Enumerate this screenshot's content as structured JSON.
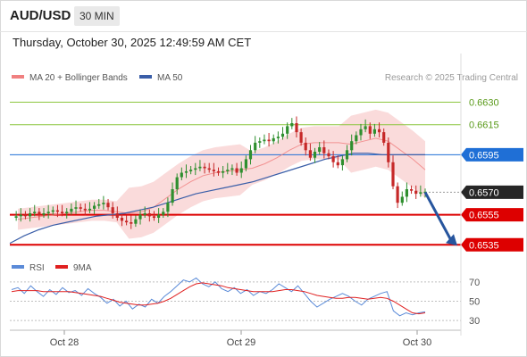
{
  "header": {
    "symbol": "AUD/USD",
    "timeframe": "30 MIN",
    "datetime": "Thursday, October 30, 2025 12:49:59 AM CET"
  },
  "colors": {
    "candle_up": "#2f8f2f",
    "candle_down": "#c62828",
    "bollinger_band": "#f8c8c8",
    "ma20": "#f08080",
    "ma50": "#3a5ea8",
    "resistance_green": "#8cc63f",
    "pivot_blue": "#1f6fd6",
    "support_red": "#dd0000",
    "rsi": "#5b8bd8",
    "rsi_ma": "#e02020",
    "forecast_arrow": "#27559e"
  },
  "chart_data": [
    {
      "type": "candlestick",
      "legend": [
        {
          "name": "MA 20 + Bollinger Bands",
          "color": "#f08080"
        },
        {
          "name": "MA 50",
          "color": "#3a5ea8"
        }
      ],
      "credit": "Research © 2025 Trading Central",
      "x_ticks": [
        "Oct 28",
        "Oct 29",
        "Oct 30"
      ],
      "ylim": [
        0.6531,
        0.6641
      ],
      "levels": [
        {
          "label": "0.6630",
          "value": 0.663,
          "kind": "resistance",
          "color": "#8cc63f"
        },
        {
          "label": "0.6615",
          "value": 0.6615,
          "kind": "resistance",
          "color": "#8cc63f"
        },
        {
          "label": "0.6595",
          "value": 0.6595,
          "kind": "pivot",
          "color": "#1f6fd6"
        },
        {
          "label": "0.6570",
          "value": 0.657,
          "kind": "last",
          "color": "#262626"
        },
        {
          "label": "0.6555",
          "value": 0.6555,
          "kind": "support",
          "color": "#dd0000"
        },
        {
          "label": "0.6535",
          "value": 0.6535,
          "kind": "support",
          "color": "#dd0000"
        }
      ],
      "forecast": {
        "from": 0.657,
        "to": 0.6535
      },
      "price_path": [
        0.6553,
        0.6554,
        0.6555,
        0.6554,
        0.6556,
        0.6557,
        0.6555,
        0.6556,
        0.6557,
        0.6558,
        0.6557,
        0.6556,
        0.6557,
        0.6559,
        0.656,
        0.6559,
        0.6558,
        0.6559,
        0.6561,
        0.6562,
        0.6563,
        0.656,
        0.6556,
        0.6553,
        0.6551,
        0.655,
        0.6549,
        0.6552,
        0.6555,
        0.6556,
        0.6554,
        0.6553,
        0.6555,
        0.6557,
        0.6563,
        0.6572,
        0.658,
        0.6583,
        0.6584,
        0.6585,
        0.6586,
        0.6587,
        0.6586,
        0.6585,
        0.6584,
        0.6583,
        0.6584,
        0.6585,
        0.6586,
        0.6583,
        0.6586,
        0.6592,
        0.6598,
        0.6603,
        0.6604,
        0.6605,
        0.6604,
        0.6606,
        0.6607,
        0.6609,
        0.6614,
        0.6616,
        0.661,
        0.6603,
        0.6598,
        0.6593,
        0.6597,
        0.66,
        0.6596,
        0.6594,
        0.659,
        0.6588,
        0.6592,
        0.6598,
        0.6604,
        0.6608,
        0.6612,
        0.6614,
        0.6609,
        0.6612,
        0.661,
        0.6603,
        0.659,
        0.6574,
        0.6563,
        0.6567,
        0.6572,
        0.6571,
        0.6569,
        0.657,
        0.657
      ],
      "ma20": [
        0.6552,
        0.6553,
        0.6554,
        0.6555,
        0.6556,
        0.6557,
        0.6558,
        0.6558,
        0.6557,
        0.6556,
        0.6557,
        0.656,
        0.6566,
        0.6572,
        0.6577,
        0.6581,
        0.6583,
        0.6584,
        0.6585,
        0.6586,
        0.6589,
        0.6593,
        0.6598,
        0.6602,
        0.6603,
        0.6603,
        0.6603,
        0.6602,
        0.6604,
        0.6606,
        0.6604,
        0.6598,
        0.6592,
        0.6585
      ],
      "ma50": [
        0.6536,
        0.6541,
        0.6545,
        0.6548,
        0.655,
        0.6552,
        0.6554,
        0.6555,
        0.6556,
        0.6558,
        0.656,
        0.6563,
        0.6566,
        0.6569,
        0.6571,
        0.6573,
        0.6575,
        0.6577,
        0.658,
        0.6583,
        0.6586,
        0.6589,
        0.6592,
        0.6594,
        0.6596,
        0.6596,
        0.6595,
        0.6595,
        0.6595,
        0.6595
      ]
    },
    {
      "type": "line",
      "legend": [
        {
          "name": "RSI",
          "color": "#5b8bd8"
        },
        {
          "name": "9MA",
          "color": "#e02020"
        }
      ],
      "y_ticks": [
        70,
        50,
        30
      ],
      "ylim": [
        20,
        80
      ],
      "rsi": [
        62,
        64,
        58,
        66,
        60,
        55,
        62,
        57,
        64,
        59,
        61,
        56,
        63,
        58,
        54,
        48,
        52,
        45,
        50,
        42,
        47,
        44,
        52,
        48,
        55,
        60,
        66,
        72,
        70,
        74,
        68,
        65,
        70,
        63,
        60,
        64,
        58,
        62,
        56,
        60,
        58,
        62,
        68,
        64,
        60,
        66,
        58,
        50,
        44,
        48,
        52,
        55,
        58,
        55,
        50,
        46,
        52,
        55,
        58,
        60,
        40,
        35,
        38,
        36,
        38,
        39
      ],
      "rsi_ma": [
        60,
        61,
        61,
        61,
        61,
        60,
        60,
        60,
        60,
        60,
        59,
        58,
        57,
        56,
        55,
        53,
        51,
        49,
        48,
        47,
        46,
        46,
        47,
        48,
        50,
        53,
        57,
        61,
        65,
        68,
        69,
        68,
        67,
        66,
        64,
        63,
        62,
        61,
        60,
        60,
        60,
        60,
        61,
        62,
        62,
        61,
        60,
        58,
        56,
        55,
        54,
        53,
        53,
        54,
        54,
        53,
        52,
        53,
        54,
        53,
        50,
        46,
        42,
        38,
        37,
        38
      ]
    }
  ]
}
